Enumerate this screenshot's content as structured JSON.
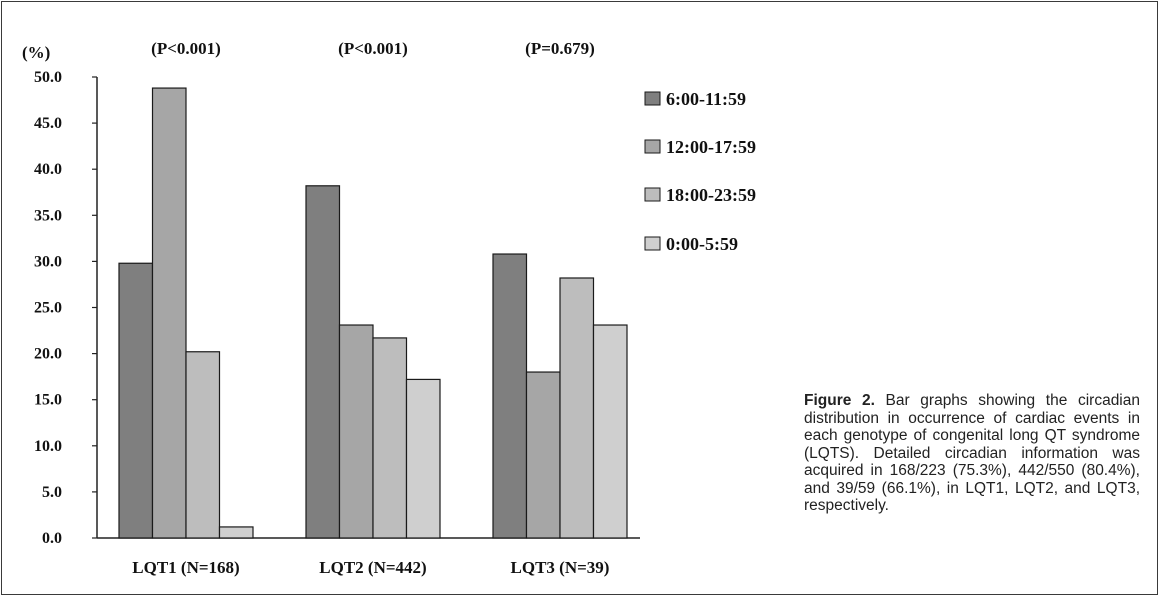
{
  "chart_data": {
    "type": "bar",
    "ylabel": "(%)",
    "ylim": [
      0,
      50
    ],
    "yticks": [
      "0.0",
      "5.0",
      "10.0",
      "15.0",
      "20.0",
      "25.0",
      "30.0",
      "35.0",
      "40.0",
      "45.0",
      "50.0"
    ],
    "categories": [
      "LQT1 (N=168)",
      "LQT2 (N=442)",
      "LQT3 (N=39)"
    ],
    "pvalues": [
      "(P<0.001)",
      "(P<0.001)",
      "(P=0.679)"
    ],
    "series": [
      {
        "name": "6:00-11:59",
        "color": "#7f7f7f",
        "values": [
          29.8,
          38.2,
          30.8
        ]
      },
      {
        "name": "12:00-17:59",
        "color": "#a6a6a6",
        "values": [
          48.8,
          23.1,
          18.0
        ]
      },
      {
        "name": "18:00-23:59",
        "color": "#bdbdbd",
        "values": [
          20.2,
          21.7,
          28.2
        ]
      },
      {
        "name": "0:00-5:59",
        "color": "#cfcfcf",
        "values": [
          1.2,
          17.2,
          23.1
        ]
      }
    ],
    "legend_position": "right",
    "grid": false
  },
  "caption": {
    "lead": "Figure 2.",
    "text": "Bar graphs showing the circadian distribution in occurrence of cardiac events in each genotype of congenital long QT syndrome (LQTS). Detailed circadian information was acquired in 168/223 (75.3%), 442/550 (80.4%), and 39/59 (66.1%), in LQT1, LQT2, and LQT3, respectively."
  }
}
